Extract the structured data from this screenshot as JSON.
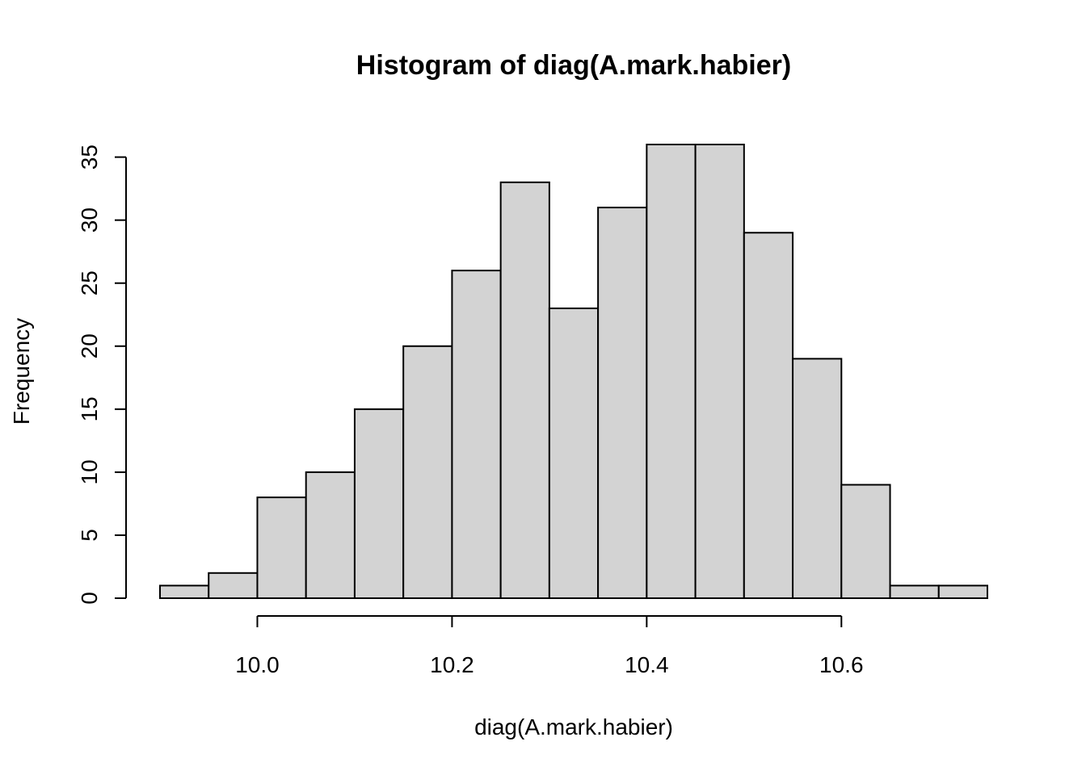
{
  "chart_data": {
    "type": "bar",
    "title": "Histogram of diag(A.mark.habier)",
    "xlabel": "diag(A.mark.habier)",
    "ylabel": "Frequency",
    "bin_edges": [
      9.9,
      9.95,
      10.0,
      10.05,
      10.1,
      10.15,
      10.2,
      10.25,
      10.3,
      10.35,
      10.4,
      10.45,
      10.5,
      10.55,
      10.6,
      10.65,
      10.7,
      10.75
    ],
    "values": [
      1,
      2,
      8,
      10,
      15,
      20,
      26,
      33,
      23,
      31,
      36,
      36,
      29,
      19,
      9,
      1,
      1
    ],
    "x_ticks": [
      10.0,
      10.2,
      10.4,
      10.6
    ],
    "x_tick_labels": [
      "10.0",
      "10.2",
      "10.4",
      "10.6"
    ],
    "y_ticks": [
      0,
      5,
      10,
      15,
      20,
      25,
      30,
      35
    ],
    "y_tick_labels": [
      "0",
      "5",
      "10",
      "15",
      "20",
      "25",
      "30",
      "35"
    ],
    "xlim": [
      9.9,
      10.75
    ],
    "ylim": [
      0,
      36
    ],
    "grid": false,
    "legend": "none",
    "bar_color": "#d3d3d3",
    "border_color": "#000000"
  }
}
